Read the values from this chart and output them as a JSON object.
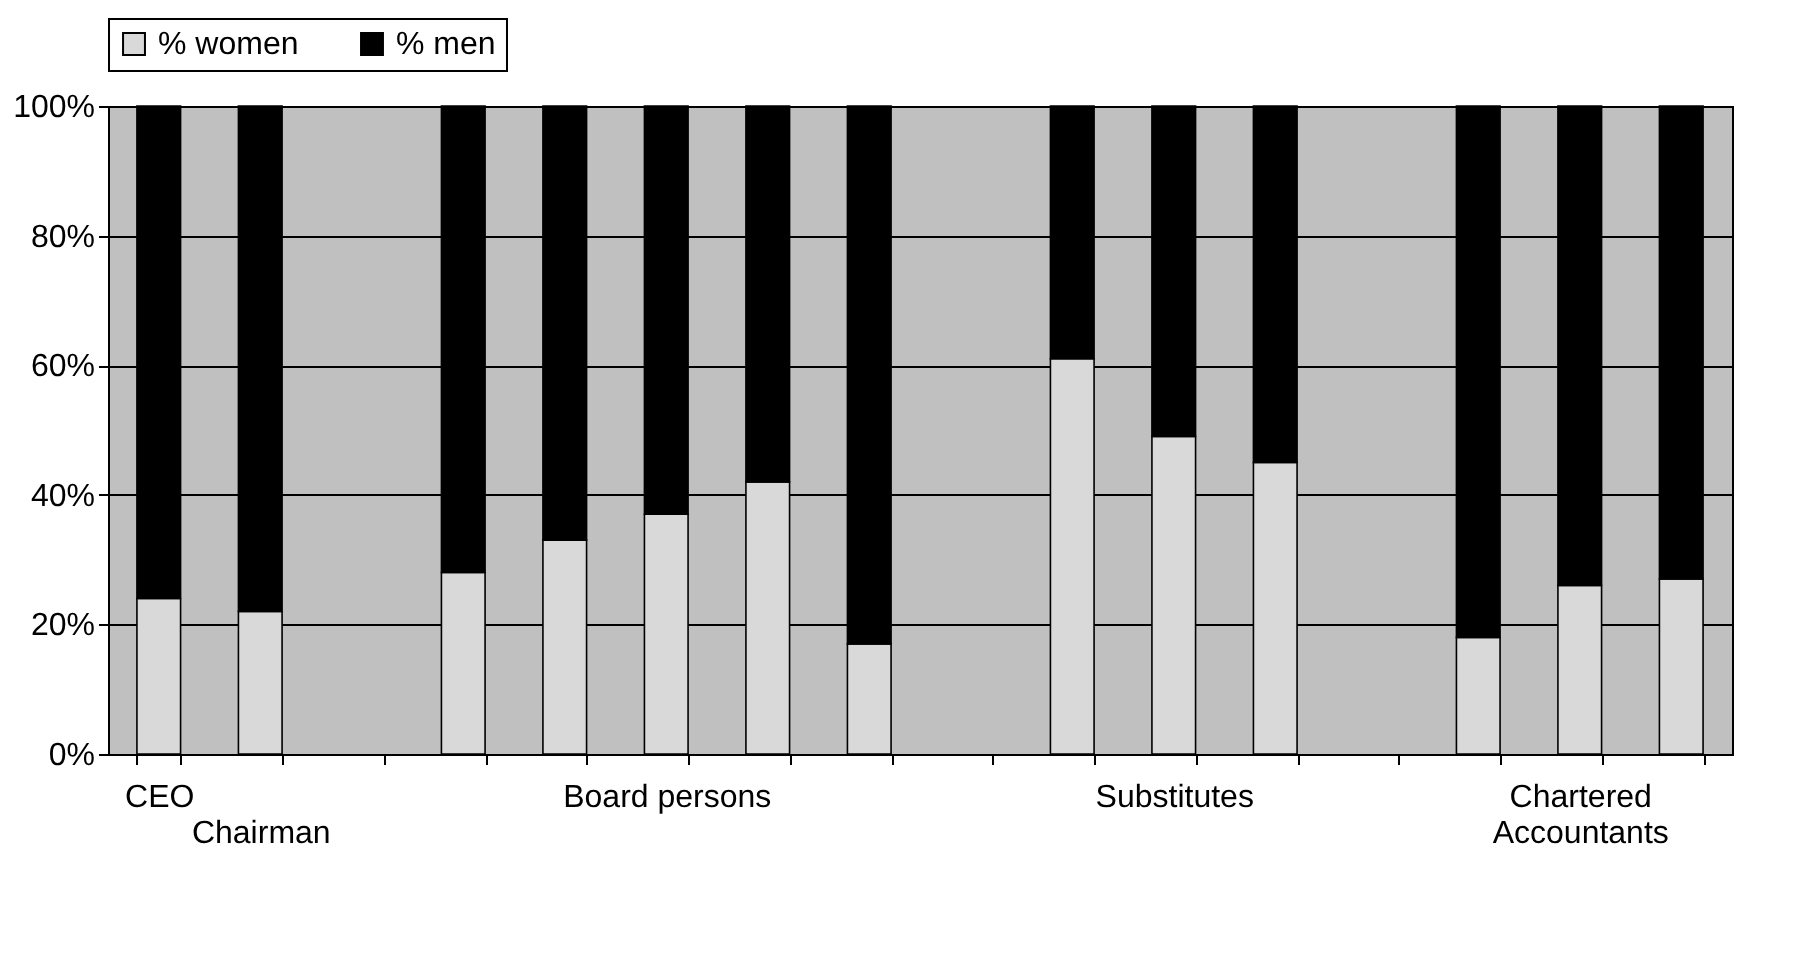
{
  "chart_data": {
    "type": "bar",
    "stacked": true,
    "categories": [
      "CEO",
      "Chairman",
      null,
      null,
      null,
      "Board persons",
      null,
      null,
      null,
      null,
      "Substitutes",
      null,
      null,
      null,
      "Chartered Accountants",
      null
    ],
    "series": [
      {
        "name": "% women",
        "color": "#d9d9d9",
        "values": [
          24,
          22,
          null,
          28,
          33,
          37,
          42,
          17,
          null,
          61,
          49,
          45,
          null,
          18,
          26,
          27
        ]
      },
      {
        "name": "% men",
        "color": "#000000",
        "values": [
          76,
          78,
          null,
          72,
          67,
          63,
          58,
          83,
          null,
          39,
          51,
          55,
          null,
          82,
          74,
          73
        ]
      }
    ],
    "ylim": [
      0,
      100
    ],
    "yticks": [
      {
        "value": 0,
        "label": "0%"
      },
      {
        "value": 20,
        "label": "20%"
      },
      {
        "value": 40,
        "label": "40%"
      },
      {
        "value": 60,
        "label": "60%"
      },
      {
        "value": 80,
        "label": "80%"
      },
      {
        "value": 100,
        "label": "100%"
      }
    ],
    "grid": "y",
    "legend": "top"
  }
}
